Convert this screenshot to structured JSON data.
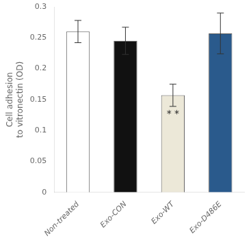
{
  "chart_data": {
    "type": "bar",
    "categories": [
      "Non-treated",
      "Exo-CON",
      "Exo-WT",
      "Exo-D486E"
    ],
    "values": [
      0.26,
      0.245,
      0.157,
      0.257
    ],
    "errors": [
      0.018,
      0.022,
      0.018,
      0.033
    ],
    "colors": [
      "#ffffff",
      "#111111",
      "#ece8d8",
      "#2a5a8c"
    ],
    "ylabel": "Cell adhesion\nto vitronectin (OD)",
    "ylim": [
      0,
      0.3
    ],
    "yticks": [
      0,
      0.05,
      0.1,
      0.15,
      0.2,
      0.25,
      0.3
    ],
    "annotations": [
      {
        "text": "* *",
        "category": "Exo-WT"
      }
    ],
    "grid": false
  }
}
